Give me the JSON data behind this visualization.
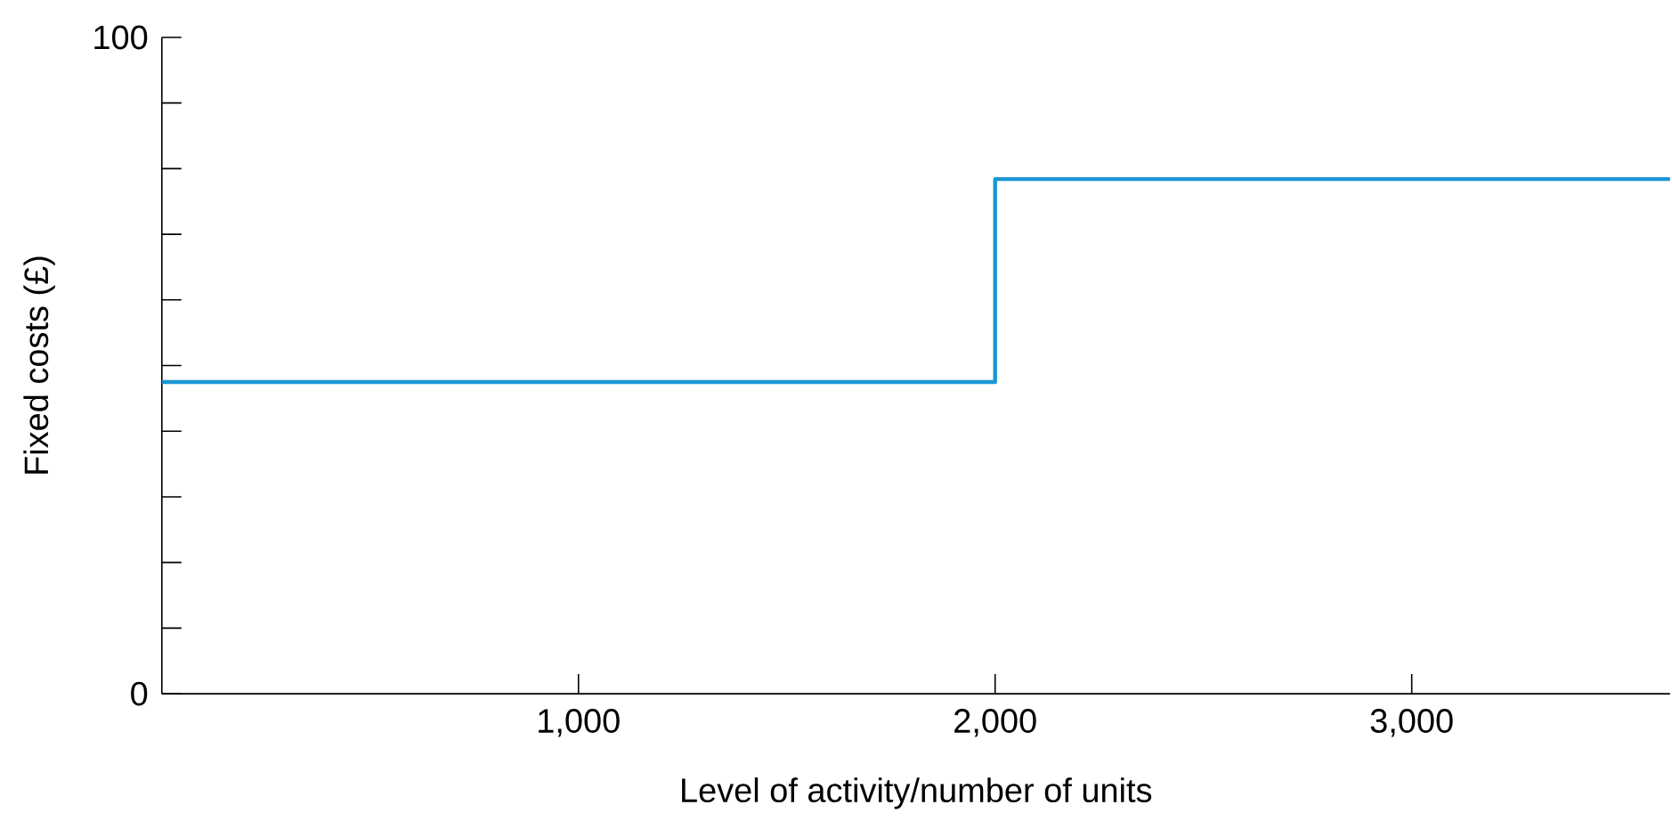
{
  "chart_data": {
    "type": "step",
    "xlabel": "Level of activity/number of units",
    "ylabel": "Fixed costs (£)",
    "x": [
      0,
      2000,
      3620
    ],
    "series": [
      {
        "color": "#1a96d4",
        "values": [
          47.5,
          78.4,
          78.4
        ]
      }
    ],
    "xlim": [
      0,
      3620
    ],
    "xticks": [
      {
        "value": 1000,
        "label": "1,000"
      },
      {
        "value": 2000,
        "label": "2,000"
      },
      {
        "value": 3000,
        "label": "3,000"
      }
    ],
    "ylim": [
      0,
      100
    ],
    "yticks": [
      0,
      {
        "value": 10,
        "label": null
      },
      {
        "value": 20,
        "label": null
      },
      {
        "value": 30,
        "label": null
      },
      {
        "value": 40,
        "label": null
      },
      {
        "value": 50,
        "label": null
      },
      {
        "value": 60,
        "label": null
      },
      {
        "value": 70,
        "label": null
      },
      {
        "value": 80,
        "label": null
      },
      {
        "value": 90,
        "label": null
      },
      100
    ],
    "grid": false
  }
}
